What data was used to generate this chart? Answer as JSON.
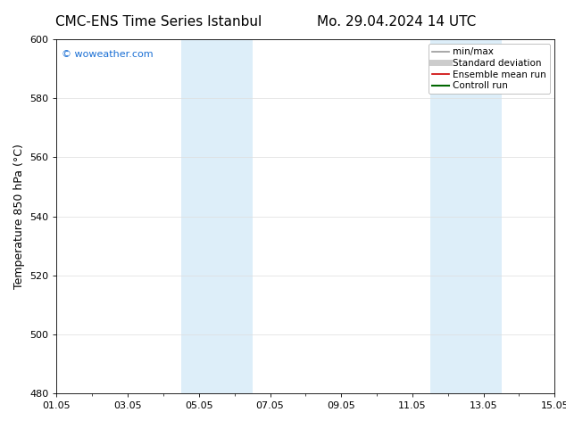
{
  "title_left": "CMC-ENS Time Series Istanbul",
  "title_right": "Mo. 29.04.2024 14 UTC",
  "ylabel": "Temperature 850 hPa (°C)",
  "ylim": [
    480,
    600
  ],
  "yticks": [
    480,
    500,
    520,
    540,
    560,
    580,
    600
  ],
  "xtick_labels": [
    "01.05",
    "03.05",
    "05.05",
    "07.05",
    "09.05",
    "11.05",
    "13.05",
    "15.05"
  ],
  "xtick_positions": [
    0,
    2,
    4,
    6,
    8,
    10,
    12,
    14
  ],
  "shaded_bands": [
    {
      "x_start": 3.5,
      "x_end": 5.5,
      "color": "#ddeef9"
    },
    {
      "x_start": 10.5,
      "x_end": 12.5,
      "color": "#ddeef9"
    }
  ],
  "watermark_text": "© woweather.com",
  "watermark_color": "#1a6fd4",
  "legend_entries": [
    {
      "label": "min/max",
      "color": "#999999",
      "lw": 1.2,
      "style": "solid"
    },
    {
      "label": "Standard deviation",
      "color": "#cccccc",
      "lw": 5,
      "style": "solid"
    },
    {
      "label": "Ensemble mean run",
      "color": "#cc0000",
      "lw": 1.2,
      "style": "solid"
    },
    {
      "label": "Controll run",
      "color": "#006600",
      "lw": 1.5,
      "style": "solid"
    }
  ],
  "background_color": "#ffffff",
  "plot_bg_color": "#ffffff",
  "grid_color": "#dddddd",
  "title_fontsize": 11,
  "tick_fontsize": 8,
  "ylabel_fontsize": 9,
  "legend_fontsize": 7.5
}
